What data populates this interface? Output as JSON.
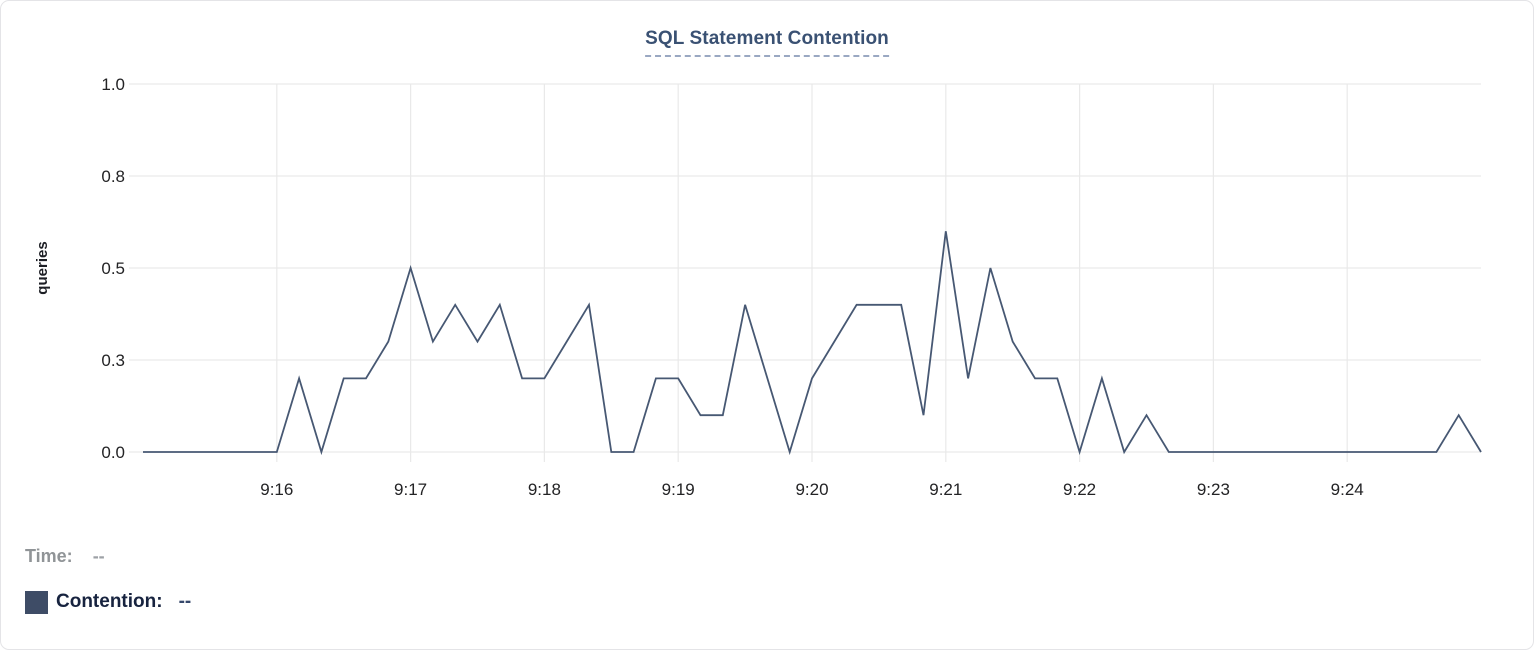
{
  "card": {
    "title": "SQL Statement Contention"
  },
  "legend": {
    "time_label": "Time:",
    "time_value": "--",
    "series_label": "Contention:",
    "series_value": "--",
    "swatch_color": "#3e4c66"
  },
  "colors": {
    "line": "#475873",
    "grid": "#e9e9e9",
    "title": "#3a5173",
    "axis_text": "#232325",
    "y_axis_title": "#1c1e24"
  },
  "chart_data": {
    "type": "line",
    "title": "SQL Statement Contention",
    "xlabel": "",
    "ylabel": "queries",
    "ylim": [
      0,
      1
    ],
    "x_range": [
      "9:15:00",
      "9:25:00"
    ],
    "grid": true,
    "legend_position": "bottom-left",
    "y_ticks": [
      {
        "label": "0.0",
        "value": 0
      },
      {
        "label": "0.3",
        "value": 0.25
      },
      {
        "label": "0.5",
        "value": 0.5
      },
      {
        "label": "0.8",
        "value": 0.75
      },
      {
        "label": "1.0",
        "value": 1
      }
    ],
    "x_ticks": [
      {
        "label": "9:16",
        "time": "9:16:00"
      },
      {
        "label": "9:17",
        "time": "9:17:00"
      },
      {
        "label": "9:18",
        "time": "9:18:00"
      },
      {
        "label": "9:19",
        "time": "9:19:00"
      },
      {
        "label": "9:20",
        "time": "9:20:00"
      },
      {
        "label": "9:21",
        "time": "9:21:00"
      },
      {
        "label": "9:22",
        "time": "9:22:00"
      },
      {
        "label": "9:23",
        "time": "9:23:00"
      },
      {
        "label": "9:24",
        "time": "9:24:00"
      }
    ],
    "series": [
      {
        "name": "Contention",
        "color": "#475873",
        "interval_seconds": 10,
        "points": [
          [
            "9:15:00",
            0
          ],
          [
            "9:15:10",
            0
          ],
          [
            "9:15:20",
            0
          ],
          [
            "9:15:30",
            0
          ],
          [
            "9:15:40",
            0
          ],
          [
            "9:15:50",
            0
          ],
          [
            "9:16:00",
            0
          ],
          [
            "9:16:10",
            0.2
          ],
          [
            "9:16:20",
            0
          ],
          [
            "9:16:30",
            0.2
          ],
          [
            "9:16:40",
            0.2
          ],
          [
            "9:16:50",
            0.3
          ],
          [
            "9:17:00",
            0.5
          ],
          [
            "9:17:10",
            0.3
          ],
          [
            "9:17:20",
            0.4
          ],
          [
            "9:17:30",
            0.3
          ],
          [
            "9:17:40",
            0.4
          ],
          [
            "9:17:50",
            0.2
          ],
          [
            "9:18:00",
            0.2
          ],
          [
            "9:18:10",
            0.3
          ],
          [
            "9:18:20",
            0.4
          ],
          [
            "9:18:30",
            0
          ],
          [
            "9:18:40",
            0
          ],
          [
            "9:18:50",
            0.2
          ],
          [
            "9:19:00",
            0.2
          ],
          [
            "9:19:10",
            0.1
          ],
          [
            "9:19:20",
            0.1
          ],
          [
            "9:19:30",
            0.4
          ],
          [
            "9:19:40",
            0.2
          ],
          [
            "9:19:50",
            0
          ],
          [
            "9:20:00",
            0.2
          ],
          [
            "9:20:10",
            0.3
          ],
          [
            "9:20:20",
            0.4
          ],
          [
            "9:20:30",
            0.4
          ],
          [
            "9:20:40",
            0.4
          ],
          [
            "9:20:50",
            0.1
          ],
          [
            "9:21:00",
            0.6
          ],
          [
            "9:21:10",
            0.2
          ],
          [
            "9:21:20",
            0.5
          ],
          [
            "9:21:30",
            0.3
          ],
          [
            "9:21:40",
            0.2
          ],
          [
            "9:21:50",
            0.2
          ],
          [
            "9:22:00",
            0
          ],
          [
            "9:22:10",
            0.2
          ],
          [
            "9:22:20",
            0
          ],
          [
            "9:22:30",
            0.1
          ],
          [
            "9:22:40",
            0
          ],
          [
            "9:22:50",
            0
          ],
          [
            "9:23:00",
            0
          ],
          [
            "9:23:10",
            0
          ],
          [
            "9:23:20",
            0
          ],
          [
            "9:23:30",
            0
          ],
          [
            "9:23:40",
            0
          ],
          [
            "9:23:50",
            0
          ],
          [
            "9:24:00",
            0
          ],
          [
            "9:24:10",
            0
          ],
          [
            "9:24:20",
            0
          ],
          [
            "9:24:30",
            0
          ],
          [
            "9:24:40",
            0
          ],
          [
            "9:24:50",
            0.1
          ],
          [
            "9:25:00",
            0
          ]
        ]
      }
    ]
  }
}
